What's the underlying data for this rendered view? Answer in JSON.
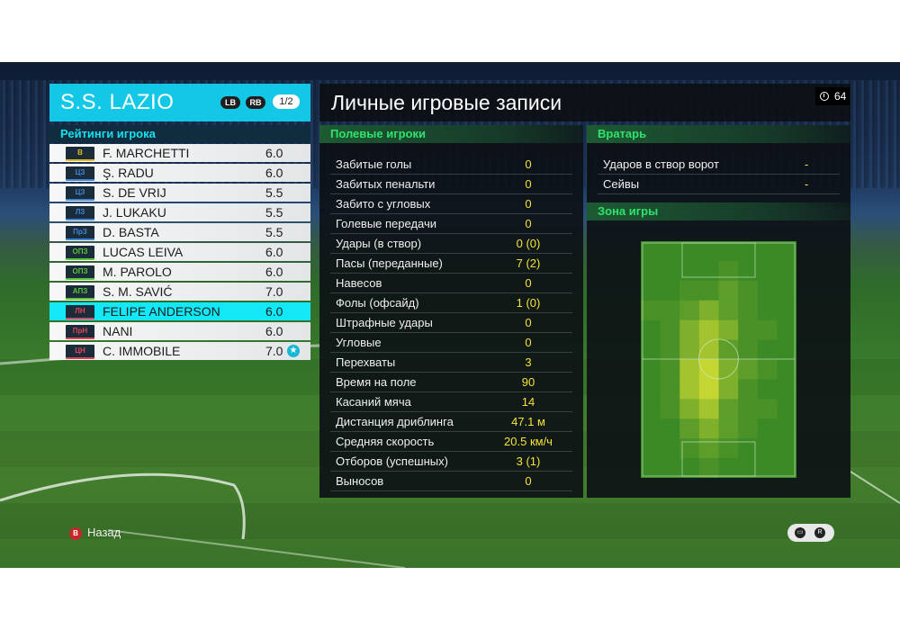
{
  "team": {
    "name": "S.S. LAZIO",
    "btn_lb": "LB",
    "btn_rb": "RB",
    "page": "1/2"
  },
  "ratings_title": "Рейтинги игрока",
  "players": [
    {
      "pos": "В",
      "pos_color": "#e2bd1d",
      "name": "F. MARCHETTI",
      "rating": "6.0"
    },
    {
      "pos": "ЦЗ",
      "pos_color": "#3f86d4",
      "name": "Ş. RADU",
      "rating": "6.0"
    },
    {
      "pos": "ЦЗ",
      "pos_color": "#3f86d4",
      "name": "S. DE VRIJ",
      "rating": "5.5"
    },
    {
      "pos": "ЛЗ",
      "pos_color": "#3f86d4",
      "name": "J. LUKAKU",
      "rating": "5.5"
    },
    {
      "pos": "ПрЗ",
      "pos_color": "#3f86d4",
      "name": "D. BASTA",
      "rating": "5.5"
    },
    {
      "pos": "ОПЗ",
      "pos_color": "#5cc43a",
      "name": "LUCAS LEIVA",
      "rating": "6.0"
    },
    {
      "pos": "ОПЗ",
      "pos_color": "#5cc43a",
      "name": "M. PAROLO",
      "rating": "6.0"
    },
    {
      "pos": "АПЗ",
      "pos_color": "#5cc43a",
      "name": "S. M. SAVIĆ",
      "rating": "7.0"
    },
    {
      "pos": "ЛН",
      "pos_color": "#e0445a",
      "name": "FELIPE ANDERSON",
      "rating": "6.0",
      "selected": true
    },
    {
      "pos": "ПрН",
      "pos_color": "#e0445a",
      "name": "NANI",
      "rating": "6.0"
    },
    {
      "pos": "ЦН",
      "pos_color": "#e0445a",
      "name": "C. IMMOBILE",
      "rating": "7.0",
      "star": true
    }
  ],
  "records_title": "Личные игровые записи",
  "timer": "64",
  "field_players": {
    "title": "Полевые игроки",
    "stats": [
      {
        "label": "Забитые голы",
        "value": "0"
      },
      {
        "label": "Забитых пенальти",
        "value": "0"
      },
      {
        "label": "Забито с угловых",
        "value": "0"
      },
      {
        "label": "Голевые передачи",
        "value": "0"
      },
      {
        "label": "Удары (в створ)",
        "value": "0 (0)"
      },
      {
        "label": "Пасы (переданные)",
        "value": "7 (2)"
      },
      {
        "label": "Навесов",
        "value": "0"
      },
      {
        "label": "Фолы (офсайд)",
        "value": "1 (0)"
      },
      {
        "label": "Штрафные удары",
        "value": "0"
      },
      {
        "label": "Угловые",
        "value": "0"
      },
      {
        "label": "Перехваты",
        "value": "3"
      },
      {
        "label": "Время на поле",
        "value": "90"
      },
      {
        "label": "Касаний мяча",
        "value": "14"
      },
      {
        "label": "Дистанция дриблинга",
        "value": "47.1 м"
      },
      {
        "label": "Средняя скорость",
        "value": "20.5 км/ч"
      },
      {
        "label": "Отборов (успешных)",
        "value": "3 (1)"
      },
      {
        "label": "Выносов",
        "value": "0"
      }
    ]
  },
  "goalkeeper": {
    "title": "Вратарь",
    "stats": [
      {
        "label": "Ударов в створ ворот",
        "value": "-"
      },
      {
        "label": "Сейвы",
        "value": "-"
      }
    ]
  },
  "zone": {
    "title": "Зона игры",
    "heatmap": [
      [
        0,
        0,
        0,
        0,
        0,
        0,
        0,
        0
      ],
      [
        0,
        0,
        0,
        0,
        1,
        0,
        0,
        0
      ],
      [
        0,
        0,
        1,
        1,
        2,
        1,
        0,
        0
      ],
      [
        1,
        1,
        2,
        3,
        2,
        1,
        0,
        0
      ],
      [
        0,
        1,
        3,
        4,
        3,
        1,
        1,
        0
      ],
      [
        0,
        1,
        3,
        4,
        2,
        1,
        0,
        0
      ],
      [
        0,
        1,
        4,
        5,
        3,
        2,
        1,
        0
      ],
      [
        0,
        1,
        4,
        5,
        3,
        1,
        0,
        0
      ],
      [
        0,
        1,
        3,
        4,
        2,
        1,
        1,
        0
      ],
      [
        0,
        0,
        2,
        3,
        2,
        1,
        0,
        0
      ],
      [
        0,
        0,
        1,
        2,
        1,
        0,
        0,
        0
      ],
      [
        0,
        0,
        0,
        1,
        0,
        0,
        0,
        0
      ]
    ],
    "colors": [
      "#3b8a26",
      "#4a9228",
      "#5d9e2a",
      "#7fb02c",
      "#a3c42e",
      "#c3d632"
    ]
  },
  "footer": {
    "back_btn": "B",
    "back_label": "Назад"
  }
}
